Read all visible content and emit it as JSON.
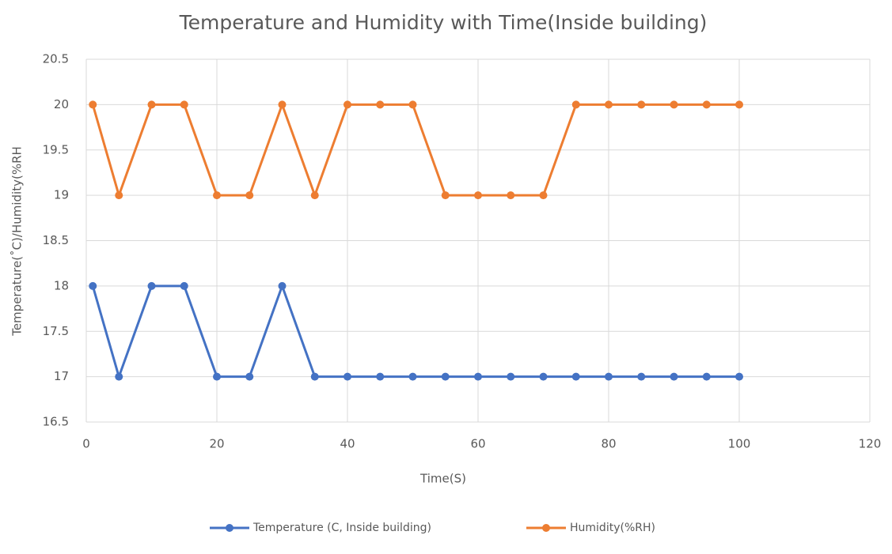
{
  "chart_data": {
    "type": "line",
    "title": "Temperature and Humidity with Time(Inside building)",
    "xlabel": "Time(S)",
    "ylabel": "Temperature(˚C)/Humidity(%RH",
    "x": [
      1,
      5,
      10,
      15,
      20,
      25,
      30,
      35,
      40,
      45,
      50,
      55,
      60,
      65,
      70,
      75,
      80,
      85,
      90,
      95,
      100
    ],
    "series": [
      {
        "name": "Temperature (C, Inside building)",
        "color": "#4472c4",
        "values": [
          18,
          17,
          18,
          18,
          17,
          17,
          18,
          17,
          17,
          17,
          17,
          17,
          17,
          17,
          17,
          17,
          17,
          17,
          17,
          17,
          17
        ]
      },
      {
        "name": "Humidity(%RH)",
        "color": "#ed7d31",
        "values": [
          20,
          19,
          20,
          20,
          19,
          19,
          20,
          19,
          20,
          20,
          20,
          19,
          19,
          19,
          19,
          20,
          20,
          20,
          20,
          20,
          20
        ]
      }
    ],
    "xlim": [
      0,
      120
    ],
    "xticks": [
      0,
      20,
      40,
      60,
      80,
      100,
      120
    ],
    "ylim": [
      16.5,
      20.5
    ],
    "yticks": [
      16.5,
      17,
      17.5,
      18,
      18.5,
      19,
      19.5,
      20,
      20.5
    ],
    "grid": true,
    "legend": "bottom"
  }
}
